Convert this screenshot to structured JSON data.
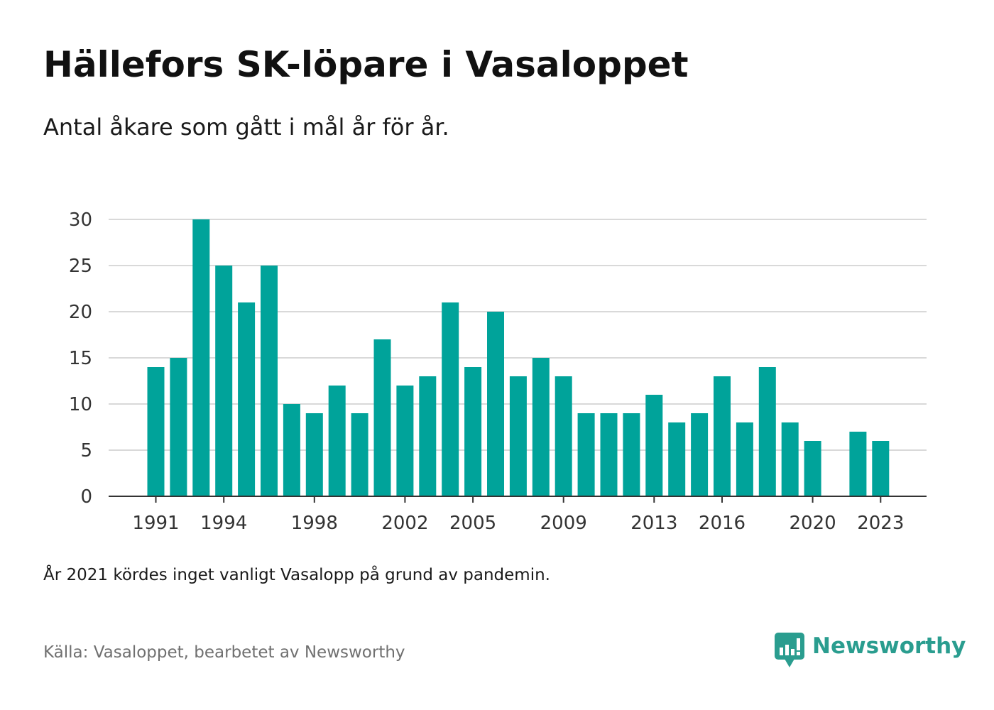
{
  "chart_data": {
    "type": "bar",
    "title": "Hällefors SK-löpare i Vasaloppet",
    "subtitle": "Antal åkare som gått i mål år för år.",
    "xlabel": "",
    "ylabel": "",
    "ylim": [
      0,
      30
    ],
    "y_ticks": [
      0,
      5,
      10,
      15,
      20,
      25,
      30
    ],
    "x_tick_labels": [
      "1991",
      "1994",
      "1998",
      "2002",
      "2005",
      "2009",
      "2013",
      "2016",
      "2020",
      "2023"
    ],
    "categories": [
      "1991",
      "1992",
      "1993",
      "1994",
      "1995",
      "1996",
      "1997",
      "1998",
      "1999",
      "2000",
      "2001",
      "2002",
      "2003",
      "2004",
      "2005",
      "2006",
      "2007",
      "2008",
      "2009",
      "2010",
      "2011",
      "2012",
      "2013",
      "2014",
      "2015",
      "2016",
      "2017",
      "2018",
      "2019",
      "2020",
      "2021",
      "2022",
      "2023"
    ],
    "values": [
      14,
      15,
      30,
      25,
      21,
      25,
      10,
      9,
      12,
      9,
      17,
      12,
      13,
      21,
      14,
      20,
      13,
      15,
      13,
      9,
      9,
      9,
      11,
      8,
      9,
      13,
      8,
      14,
      8,
      6,
      null,
      7,
      6
    ],
    "bar_color": "#00a39a",
    "grid": true,
    "legend": "none"
  },
  "note": "År 2021 kördes inget vanligt Vasalopp på grund av pandemin.",
  "source": "Källa: Vasaloppet, bearbetet av Newsworthy",
  "logo": {
    "text": "Newsworthy",
    "icon": "newsworthy-logo-icon",
    "color": "#2a9d8f"
  }
}
